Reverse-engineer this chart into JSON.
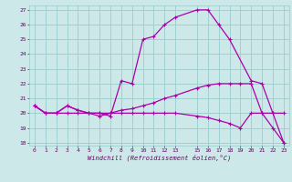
{
  "xlabel": "Windchill (Refroidissement éolien,°C)",
  "bg_color": "#cce8e8",
  "grid_color": "#99cccc",
  "line_color": "#aa00aa",
  "xlim": [
    -0.5,
    23.5
  ],
  "ylim": [
    17.8,
    27.3
  ],
  "yticks": [
    18,
    19,
    20,
    21,
    22,
    23,
    24,
    25,
    26,
    27
  ],
  "xticks": [
    0,
    1,
    2,
    3,
    4,
    5,
    6,
    7,
    8,
    9,
    10,
    11,
    12,
    13,
    15,
    16,
    17,
    18,
    19,
    20,
    21,
    22,
    23
  ],
  "curve1_x": [
    0,
    1,
    2,
    3,
    4,
    5,
    6,
    7,
    8,
    9,
    10,
    11,
    12,
    13,
    15,
    16,
    17,
    18,
    20,
    21,
    22,
    23
  ],
  "curve1_y": [
    20.5,
    20.0,
    20.0,
    20.5,
    20.2,
    20.0,
    20.0,
    19.8,
    22.2,
    22.0,
    25.0,
    25.2,
    26.0,
    26.5,
    27.0,
    27.0,
    26.0,
    25.0,
    22.2,
    22.0,
    20.0,
    20.0
  ],
  "curve2_x": [
    0,
    1,
    2,
    3,
    4,
    5,
    6,
    7,
    8,
    9,
    10,
    11,
    12,
    13,
    15,
    16,
    17,
    18,
    19,
    20,
    21,
    22,
    23
  ],
  "curve2_y": [
    20.5,
    20.0,
    20.0,
    20.5,
    20.2,
    20.0,
    19.8,
    20.0,
    20.2,
    20.3,
    20.5,
    20.7,
    21.0,
    21.2,
    21.7,
    21.9,
    22.0,
    22.0,
    22.0,
    22.0,
    20.0,
    20.0,
    18.0
  ],
  "curve3_x": [
    0,
    1,
    2,
    3,
    4,
    5,
    6,
    7,
    8,
    9,
    10,
    11,
    12,
    13,
    15,
    16,
    17,
    18,
    19,
    20,
    21,
    22,
    23
  ],
  "curve3_y": [
    20.5,
    20.0,
    20.0,
    20.0,
    20.0,
    20.0,
    20.0,
    20.0,
    20.0,
    20.0,
    20.0,
    20.0,
    20.0,
    20.0,
    19.8,
    19.7,
    19.5,
    19.3,
    19.0,
    20.0,
    20.0,
    19.0,
    18.0
  ]
}
